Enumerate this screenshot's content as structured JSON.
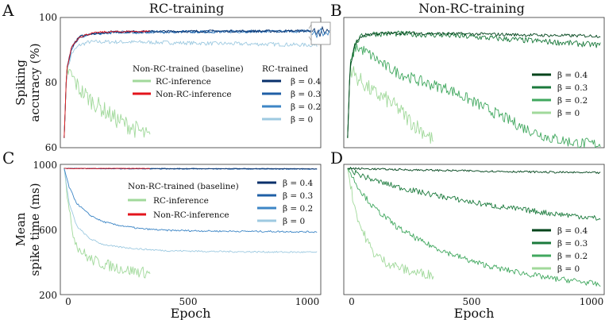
{
  "colors": {
    "blue": [
      "#08306b",
      "#1f5fa6",
      "#3d86c6",
      "#9ecae1"
    ],
    "green": [
      "#00441b",
      "#1b7a3c",
      "#41a85f",
      "#a1d99b"
    ],
    "red": "#e3141c"
  },
  "chart_data": [
    {
      "type": "line",
      "panel": "A",
      "title": "RC-training",
      "ylabel": "Spiking accuracy (%)",
      "ylim": [
        60,
        100
      ],
      "xlim": [
        -15,
        1015
      ],
      "yticks": [
        "60",
        "80",
        "100"
      ],
      "legend_baseline_title": "Non-RC-trained (baseline)",
      "legend_rc_title": "RC-trained",
      "baseline_series": [
        {
          "name": "RC-inference",
          "x": [
            0,
            10,
            30,
            60,
            100,
            150,
            200,
            250,
            300,
            340
          ],
          "values": [
            63,
            84,
            82,
            78,
            75,
            72,
            69,
            67,
            65,
            63
          ]
        },
        {
          "name": "Non-RC-inference",
          "x": [
            0,
            10,
            30,
            60,
            100,
            150,
            200,
            250,
            300,
            340
          ],
          "values": [
            63,
            84,
            91,
            94,
            95,
            95.5,
            95.6,
            95.7,
            95.7,
            95.8
          ]
        }
      ],
      "series": [
        {
          "name": "β = 0.4",
          "x": [
            0,
            10,
            30,
            60,
            100,
            200,
            400,
            600,
            800,
            1000
          ],
          "values": [
            63,
            84,
            91,
            94,
            95,
            95.6,
            95.7,
            95.8,
            95.8,
            95.9
          ]
        },
        {
          "name": "β = 0.3",
          "x": [
            0,
            10,
            30,
            60,
            100,
            200,
            400,
            600,
            800,
            1000
          ],
          "values": [
            63,
            84,
            91,
            94,
            95,
            95.5,
            95.6,
            95.7,
            95.8,
            95.8
          ]
        },
        {
          "name": "β = 0.2",
          "x": [
            0,
            10,
            30,
            60,
            100,
            200,
            400,
            600,
            800,
            1000
          ],
          "values": [
            63,
            84,
            90.5,
            93.5,
            94.8,
            95.3,
            95.5,
            95.6,
            95.7,
            95.7
          ]
        },
        {
          "name": "β = 0",
          "x": [
            0,
            10,
            30,
            60,
            100,
            200,
            400,
            600,
            800,
            1000
          ],
          "values": [
            63,
            83,
            89,
            91.5,
            92.5,
            92.5,
            92.3,
            92,
            91.8,
            91.5
          ]
        }
      ]
    },
    {
      "type": "line",
      "panel": "B",
      "title": "Non-RC-training",
      "ylim": [
        60,
        100
      ],
      "xlim": [
        -15,
        1015
      ],
      "series": [
        {
          "name": "β = 0.4",
          "x": [
            0,
            10,
            30,
            60,
            100,
            200,
            400,
            600,
            800,
            1000
          ],
          "values": [
            63,
            85,
            92,
            94.5,
            95,
            95.2,
            95,
            94.8,
            94.5,
            94.3
          ]
        },
        {
          "name": "β = 0.3",
          "x": [
            0,
            10,
            30,
            60,
            100,
            200,
            400,
            600,
            800,
            1000
          ],
          "values": [
            63,
            85,
            92,
            94.5,
            95,
            95,
            94.5,
            93.5,
            92.5,
            91.5
          ]
        },
        {
          "name": "β = 0.2",
          "x": [
            0,
            10,
            30,
            60,
            100,
            150,
            200,
            300,
            400,
            500,
            600,
            700,
            800,
            900,
            1000
          ],
          "values": [
            63,
            85,
            91,
            90,
            88,
            85,
            83,
            80,
            78,
            74,
            70,
            66,
            63,
            61.5,
            61
          ]
        },
        {
          "name": "β = 0",
          "x": [
            0,
            10,
            30,
            60,
            100,
            150,
            200,
            250,
            300,
            340
          ],
          "values": [
            63,
            85,
            82,
            80,
            77,
            75,
            72,
            68,
            65,
            62
          ]
        }
      ]
    },
    {
      "type": "line",
      "panel": "C",
      "xlabel": "Epoch",
      "ylabel": "Mean spike time (ms)",
      "ylim": [
        200,
        1000
      ],
      "xlim": [
        -15,
        1015
      ],
      "xticks": [
        "0",
        "500",
        "1000"
      ],
      "yticks": [
        "200",
        "600",
        "1000"
      ],
      "legend_baseline_title": "Non-RC-trained (baseline)",
      "baseline_series": [
        {
          "name": "RC-inference",
          "x": [
            0,
            10,
            20,
            40,
            60,
            100,
            150,
            200,
            250,
            300,
            340
          ],
          "values": [
            980,
            850,
            700,
            550,
            480,
            420,
            390,
            370,
            350,
            340,
            330
          ]
        },
        {
          "name": "Non-RC-inference",
          "x": [
            0,
            100,
            200,
            340
          ],
          "values": [
            975,
            975,
            975,
            975
          ]
        }
      ],
      "series": [
        {
          "name": "β = 0.4",
          "x": [
            0,
            200,
            400,
            600,
            800,
            1000
          ],
          "values": [
            975,
            974,
            974,
            974,
            974,
            973
          ]
        },
        {
          "name": "β = 0.3",
          "x": [
            0,
            200,
            400,
            600,
            800,
            1000
          ],
          "values": [
            975,
            973,
            972,
            972,
            971,
            971
          ]
        },
        {
          "name": "β = 0.2",
          "x": [
            0,
            20,
            50,
            100,
            150,
            200,
            300,
            400,
            600,
            800,
            1000
          ],
          "values": [
            975,
            860,
            760,
            690,
            650,
            630,
            605,
            595,
            590,
            588,
            585
          ]
        },
        {
          "name": "β = 0",
          "x": [
            0,
            20,
            50,
            100,
            150,
            200,
            300,
            400,
            600,
            800,
            1000
          ],
          "values": [
            975,
            760,
            620,
            545,
            510,
            495,
            480,
            470,
            465,
            462,
            460
          ]
        }
      ]
    },
    {
      "type": "line",
      "panel": "D",
      "xlabel": "Epoch",
      "ylim": [
        200,
        1000
      ],
      "xlim": [
        -15,
        1015
      ],
      "xticks": [
        "0",
        "500",
        "1000"
      ],
      "series": [
        {
          "name": "β = 0.4",
          "x": [
            0,
            200,
            400,
            600,
            800,
            1000
          ],
          "values": [
            975,
            968,
            962,
            957,
            952,
            948
          ]
        },
        {
          "name": "β = 0.3",
          "x": [
            0,
            50,
            100,
            200,
            300,
            400,
            500,
            600,
            700,
            800,
            900,
            1000
          ],
          "values": [
            975,
            935,
            905,
            860,
            825,
            795,
            765,
            740,
            720,
            700,
            685,
            665
          ]
        },
        {
          "name": "β = 0.2",
          "x": [
            0,
            50,
            100,
            200,
            300,
            400,
            500,
            600,
            700,
            800,
            900,
            1000
          ],
          "values": [
            975,
            840,
            740,
            610,
            520,
            455,
            400,
            360,
            330,
            300,
            285,
            260
          ]
        },
        {
          "name": "β = 0",
          "x": [
            0,
            25,
            50,
            100,
            150,
            200,
            250,
            300,
            340
          ],
          "values": [
            975,
            760,
            620,
            460,
            400,
            370,
            340,
            330,
            320
          ]
        }
      ]
    }
  ]
}
